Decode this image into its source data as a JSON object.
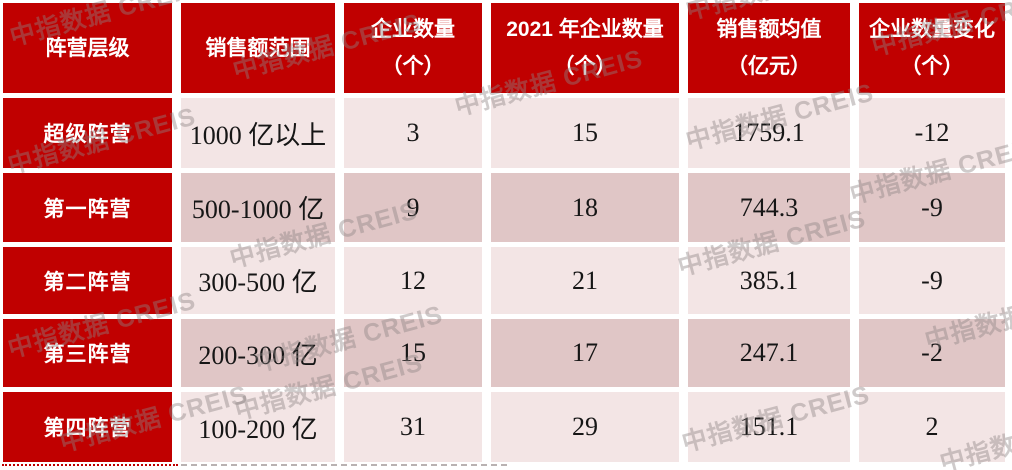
{
  "watermark": {
    "text": "中指数据 CREIS"
  },
  "colors": {
    "header_red": "#C00000",
    "row_light": "#F3E5E5",
    "row_dark": "#E0C6C6",
    "text": "#161616",
    "watermark_gray": "#8d8383"
  },
  "table": {
    "headers": [
      {
        "label": "阵营层级",
        "unit": ""
      },
      {
        "label": "销售额范围",
        "unit": ""
      },
      {
        "label": "企业数量",
        "unit": "（个）"
      },
      {
        "label": "2021 年企业数量",
        "unit": "（个）"
      },
      {
        "label": "销售额均值",
        "unit": "（亿元）"
      },
      {
        "label": "企业数量变化",
        "unit": "（个）"
      }
    ]
  },
  "chart_data": {
    "type": "table",
    "title": "",
    "columns": [
      "阵营层级",
      "销售额范围",
      "企业数量（个）",
      "2021 年企业数量（个）",
      "销售额均值（亿元）",
      "企业数量变化（个）"
    ],
    "rows": [
      [
        "超级阵营",
        "1000 亿以上",
        3,
        15,
        1759.1,
        -12
      ],
      [
        "第一阵营",
        "500-1000 亿",
        9,
        18,
        744.3,
        -9
      ],
      [
        "第二阵营",
        "300-500 亿",
        12,
        21,
        385.1,
        -9
      ],
      [
        "第三阵营",
        "200-300 亿",
        15,
        17,
        247.1,
        -2
      ],
      [
        "第四阵营",
        "100-200 亿",
        31,
        29,
        151.1,
        2
      ]
    ],
    "watermark": "中指数据 CREIS"
  }
}
